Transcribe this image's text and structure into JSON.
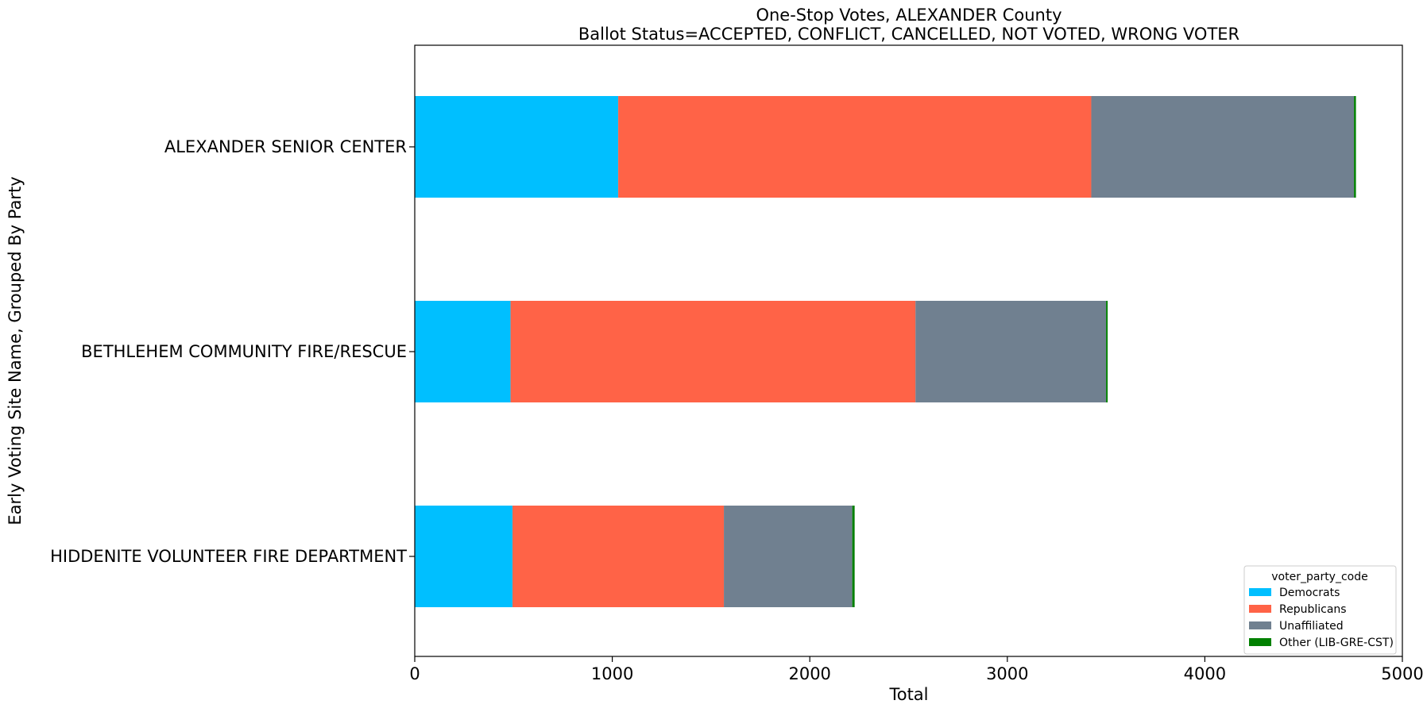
{
  "chart_data": {
    "type": "bar",
    "orientation": "horizontal",
    "stacked": true,
    "title": "One-Stop Votes, ALEXANDER County",
    "subtitle": "Ballot Status=ACCEPTED, CONFLICT, CANCELLED, NOT VOTED, WRONG VOTER",
    "xlabel": "Total",
    "ylabel": "Early Voting Site Name, Grouped By Party",
    "xlim": [
      0,
      5000
    ],
    "xticks": [
      0,
      1000,
      2000,
      3000,
      4000,
      5000
    ],
    "categories": [
      "ALEXANDER SENIOR CENTER",
      "BETHLEHEM COMMUNITY FIRE/RESCUE",
      "HIDDENITE VOLUNTEER FIRE DEPARTMENT"
    ],
    "series": [
      {
        "name": "Democrats",
        "color": "#00bfff",
        "values": [
          1030,
          485,
          495
        ]
      },
      {
        "name": "Republicans",
        "color": "#ff6347",
        "values": [
          2395,
          2050,
          1070
        ]
      },
      {
        "name": "Unaffiliated",
        "color": "#708090",
        "values": [
          1330,
          965,
          650
        ]
      },
      {
        "name": "Other (LIB-GRE-CST)",
        "color": "#008000",
        "values": [
          10,
          8,
          12
        ]
      }
    ],
    "legend": {
      "title": "voter_party_code",
      "position": "lower-right"
    },
    "grid": false
  }
}
